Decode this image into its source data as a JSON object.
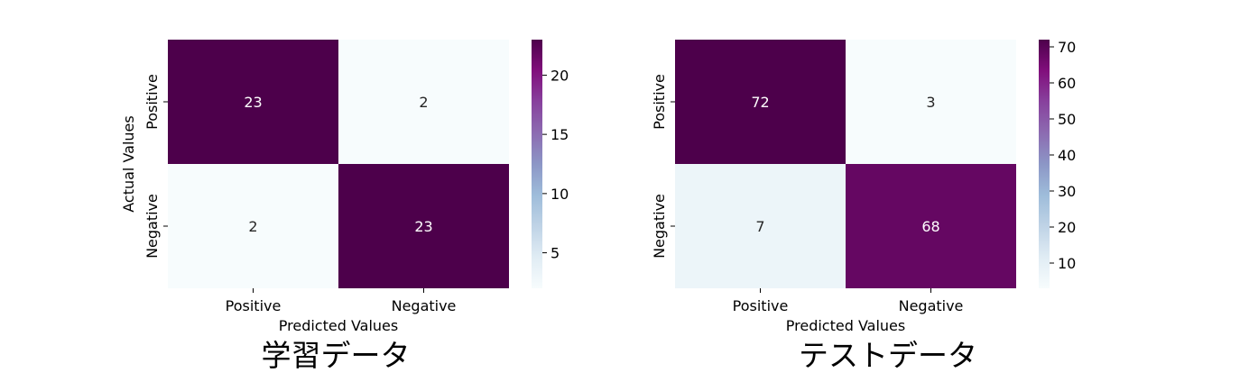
{
  "chart_data": [
    {
      "type": "heatmap",
      "caption": "学習データ",
      "xlabel": "Predicted Values",
      "ylabel": "Actual Values",
      "x_categories": [
        "Positive",
        "Negative"
      ],
      "y_categories": [
        "Positive",
        "Negative"
      ],
      "values": [
        [
          23,
          2
        ],
        [
          2,
          23
        ]
      ],
      "colormap": "BuPu",
      "colorbar": {
        "min": 2,
        "max": 23,
        "ticks": [
          5,
          10,
          15,
          20
        ]
      }
    },
    {
      "type": "heatmap",
      "caption": "テストデータ",
      "xlabel": "Predicted Values",
      "ylabel": "",
      "x_categories": [
        "Positive",
        "Negative"
      ],
      "y_categories": [
        "Positive",
        "Negative"
      ],
      "values": [
        [
          72,
          3
        ],
        [
          7,
          68
        ]
      ],
      "colormap": "BuPu",
      "colorbar": {
        "min": 3,
        "max": 72,
        "ticks": [
          10,
          20,
          30,
          40,
          50,
          60,
          70
        ]
      }
    }
  ]
}
